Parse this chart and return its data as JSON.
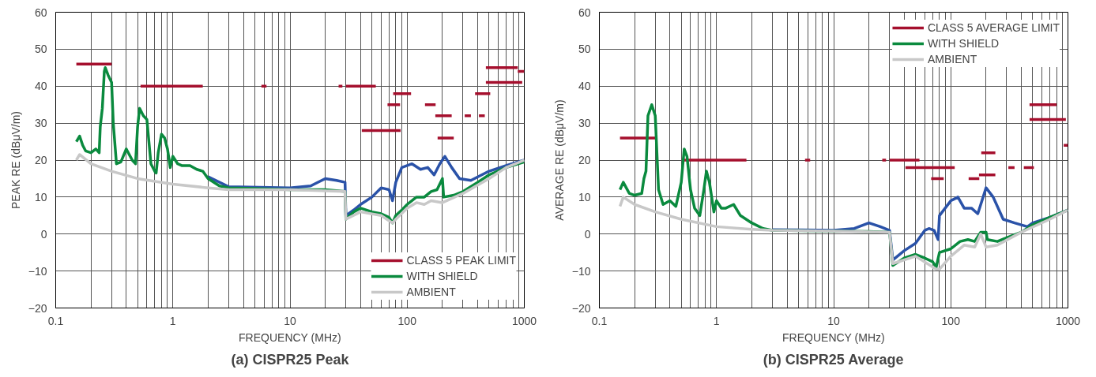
{
  "chart_data": [
    {
      "type": "line",
      "title": "(a) CISPR25 Peak",
      "xlabel": "FREQUENCY (MHz)",
      "ylabel": "PEAK RE (dBμV/m)",
      "log": "x",
      "grid": true,
      "legend": "bottom right",
      "xlim": [
        0.1,
        1000
      ],
      "xticks": [
        0.1,
        1,
        10,
        100,
        1000
      ],
      "ylim": [
        -20,
        60
      ],
      "yticks": [
        -20,
        -10,
        0,
        10,
        20,
        30,
        40,
        50,
        60
      ],
      "series": [
        {
          "name": "CLASS 5 PEAK LIMIT",
          "color": "#a50f2d",
          "x": [
            0.15,
            0.3,
            null,
            0.53,
            1.8,
            null,
            5.7,
            6.3,
            null,
            26,
            28,
            null,
            30,
            54,
            null,
            41,
            88,
            null,
            68,
            87,
            null,
            76,
            108,
            null,
            142,
            175,
            null,
            174,
            240,
            null,
            182,
            250,
            null,
            310,
            350,
            null,
            410,
            460,
            null,
            380,
            512,
            null,
            470,
            880,
            null,
            470,
            960,
            null,
            880,
            1000
          ],
          "values": [
            46,
            46,
            null,
            40,
            40,
            null,
            40,
            40,
            null,
            40,
            40,
            null,
            40,
            40,
            null,
            28,
            28,
            null,
            35,
            35,
            null,
            38,
            38,
            null,
            35,
            35,
            null,
            32,
            32,
            null,
            26,
            26,
            null,
            32,
            32,
            null,
            32,
            32,
            null,
            38,
            38,
            null,
            45,
            45,
            null,
            41,
            41,
            null,
            44,
            44
          ]
        },
        {
          "color": "#2a52a8",
          "x": [
            2,
            3,
            10,
            15,
            20,
            25,
            29.5,
            30,
            35,
            40,
            50,
            60,
            70,
            75,
            80,
            90,
            110,
            130,
            150,
            170,
            190,
            210,
            240,
            280,
            350,
            500,
            700,
            1000
          ],
          "values": [
            15.5,
            12.8,
            12.5,
            13,
            15,
            14.5,
            14,
            5,
            6.5,
            8,
            10,
            12.5,
            12,
            9,
            14,
            18,
            19,
            17.5,
            18,
            16,
            19,
            21,
            18,
            15,
            14.5,
            17,
            18.5,
            20
          ]
        },
        {
          "name": "WITH SHIELD",
          "color": "#0a8a3e",
          "x": [
            0.15,
            0.16,
            0.17,
            0.18,
            0.2,
            0.22,
            0.235,
            0.24,
            0.25,
            0.26,
            0.265,
            0.28,
            0.3,
            0.31,
            0.33,
            0.36,
            0.4,
            0.45,
            0.48,
            0.5,
            0.52,
            0.56,
            0.6,
            0.65,
            0.7,
            0.72,
            0.75,
            0.8,
            0.85,
            0.9,
            0.95,
            1,
            1.1,
            1.2,
            1.4,
            1.6,
            1.8,
            2,
            2.5,
            3,
            5,
            10,
            20,
            29.5,
            30,
            35,
            40,
            50,
            60,
            70,
            75,
            80,
            90,
            100,
            120,
            140,
            160,
            180,
            200,
            205,
            250,
            300,
            400,
            500,
            700,
            1000
          ],
          "values": [
            25,
            26.5,
            24,
            22.5,
            22,
            23,
            22,
            29,
            34,
            44,
            45,
            43,
            41,
            30,
            19,
            19.5,
            23,
            20,
            19,
            29,
            34,
            32,
            31,
            19,
            17,
            16.5,
            22,
            27,
            26,
            23,
            18,
            21,
            19,
            18.5,
            18.5,
            17.5,
            17,
            15,
            13,
            12.5,
            12.3,
            12,
            12,
            11.5,
            4,
            6,
            7,
            6,
            5.5,
            4.5,
            3,
            5,
            6.5,
            8,
            10,
            10,
            11.5,
            12,
            15,
            10,
            10.5,
            11.5,
            14,
            16,
            18,
            19.5
          ]
        },
        {
          "name": "AMBIENT",
          "color": "#c8c8c8",
          "x": [
            0.15,
            0.16,
            0.2,
            0.3,
            0.5,
            1,
            2,
            3,
            10,
            29.5,
            30,
            40,
            60,
            75,
            80,
            100,
            120,
            140,
            160,
            200,
            300,
            500,
            700,
            1000
          ],
          "values": [
            20,
            21.5,
            19,
            17,
            15,
            13.5,
            12.5,
            12,
            12,
            11.5,
            4,
            6,
            5,
            3,
            4,
            7,
            8.5,
            8,
            9,
            8.5,
            11,
            15,
            18,
            20
          ]
        }
      ]
    },
    {
      "type": "line",
      "title": "(b) CISPR25 Average",
      "xlabel": "FREQUENCY (MHz)",
      "ylabel": "AVERAGE RE (dBμV/m)",
      "log": "x",
      "grid": true,
      "legend": "top right",
      "xlim": [
        0.1,
        1000
      ],
      "xticks": [
        0.1,
        1,
        10,
        100,
        1000
      ],
      "ylim": [
        -20,
        60
      ],
      "yticks": [
        -20,
        -10,
        0,
        10,
        20,
        30,
        40,
        50,
        60
      ],
      "series": [
        {
          "name": "CLASS 5 AVERAGE LIMIT",
          "color": "#a50f2d",
          "x": [
            0.15,
            0.3,
            null,
            0.53,
            1.8,
            null,
            5.7,
            6.3,
            null,
            26,
            28,
            null,
            30,
            54,
            null,
            41,
            108,
            null,
            68,
            87,
            null,
            142,
            175,
            null,
            182,
            240,
            null,
            174,
            240,
            null,
            310,
            350,
            null,
            420,
            512,
            null,
            470,
            800,
            null,
            470,
            960,
            null,
            920,
            1000
          ],
          "values": [
            26,
            26,
            null,
            20,
            20,
            null,
            20,
            20,
            null,
            20,
            20,
            null,
            20,
            20,
            null,
            18,
            18,
            null,
            15,
            15,
            null,
            15,
            15,
            null,
            22,
            22,
            null,
            16,
            16,
            null,
            18,
            18,
            null,
            18,
            18,
            null,
            35,
            35,
            null,
            31,
            31,
            null,
            24,
            24
          ]
        },
        {
          "color": "#2a52a8",
          "x": [
            3,
            10,
            15,
            20,
            25,
            30,
            32,
            40,
            50,
            60,
            65,
            72,
            78,
            80,
            100,
            115,
            130,
            150,
            170,
            200,
            230,
            280,
            350,
            450,
            500,
            700,
            1000
          ],
          "values": [
            1.2,
            1,
            1.5,
            3,
            2,
            1,
            -7,
            -4.5,
            -2.5,
            1,
            1.5,
            1,
            -1.5,
            5,
            9,
            10,
            7,
            7,
            5.5,
            12.5,
            10,
            4,
            3,
            2,
            3,
            4.5,
            6.5
          ]
        },
        {
          "name": "WITH SHIELD",
          "color": "#0a8a3e",
          "x": [
            0.15,
            0.16,
            0.18,
            0.2,
            0.23,
            0.24,
            0.25,
            0.26,
            0.28,
            0.3,
            0.32,
            0.35,
            0.4,
            0.45,
            0.5,
            0.53,
            0.56,
            0.6,
            0.65,
            0.72,
            0.78,
            0.82,
            0.87,
            0.95,
            1,
            1.1,
            1.2,
            1.4,
            1.6,
            2,
            2.5,
            3,
            10,
            20,
            30,
            32,
            40,
            50,
            60,
            70,
            75,
            80,
            100,
            120,
            140,
            160,
            180,
            200,
            205,
            250,
            300,
            400,
            500,
            700,
            1000
          ],
          "values": [
            12,
            14,
            11,
            10.5,
            11,
            15,
            17,
            32,
            35,
            32,
            12,
            8,
            9,
            7.5,
            14,
            23,
            21,
            12,
            7,
            5,
            12,
            17,
            14,
            6,
            9,
            7,
            7,
            8,
            5,
            3,
            1.5,
            1,
            0.8,
            0.7,
            0.5,
            -8.5,
            -6.5,
            -5.5,
            -6.5,
            -7.5,
            -9,
            -5,
            -4,
            -2,
            -1.5,
            -2,
            0.5,
            0.5,
            -1.5,
            -2,
            -1,
            0.5,
            2.5,
            4.5,
            6.5
          ]
        },
        {
          "name": "AMBIENT",
          "color": "#c8c8c8",
          "x": [
            0.15,
            0.16,
            0.2,
            0.3,
            0.5,
            1,
            2,
            3,
            10,
            30,
            32,
            50,
            75,
            80,
            100,
            130,
            160,
            180,
            200,
            250,
            400,
            700,
            1000
          ],
          "values": [
            7.5,
            10,
            8,
            6,
            4,
            2,
            1.3,
            1,
            0.8,
            0.5,
            -8,
            -6,
            -9.5,
            -9.5,
            -6,
            -3,
            -3.5,
            0,
            -3.5,
            -3,
            0.5,
            4,
            6.5
          ]
        }
      ]
    }
  ]
}
